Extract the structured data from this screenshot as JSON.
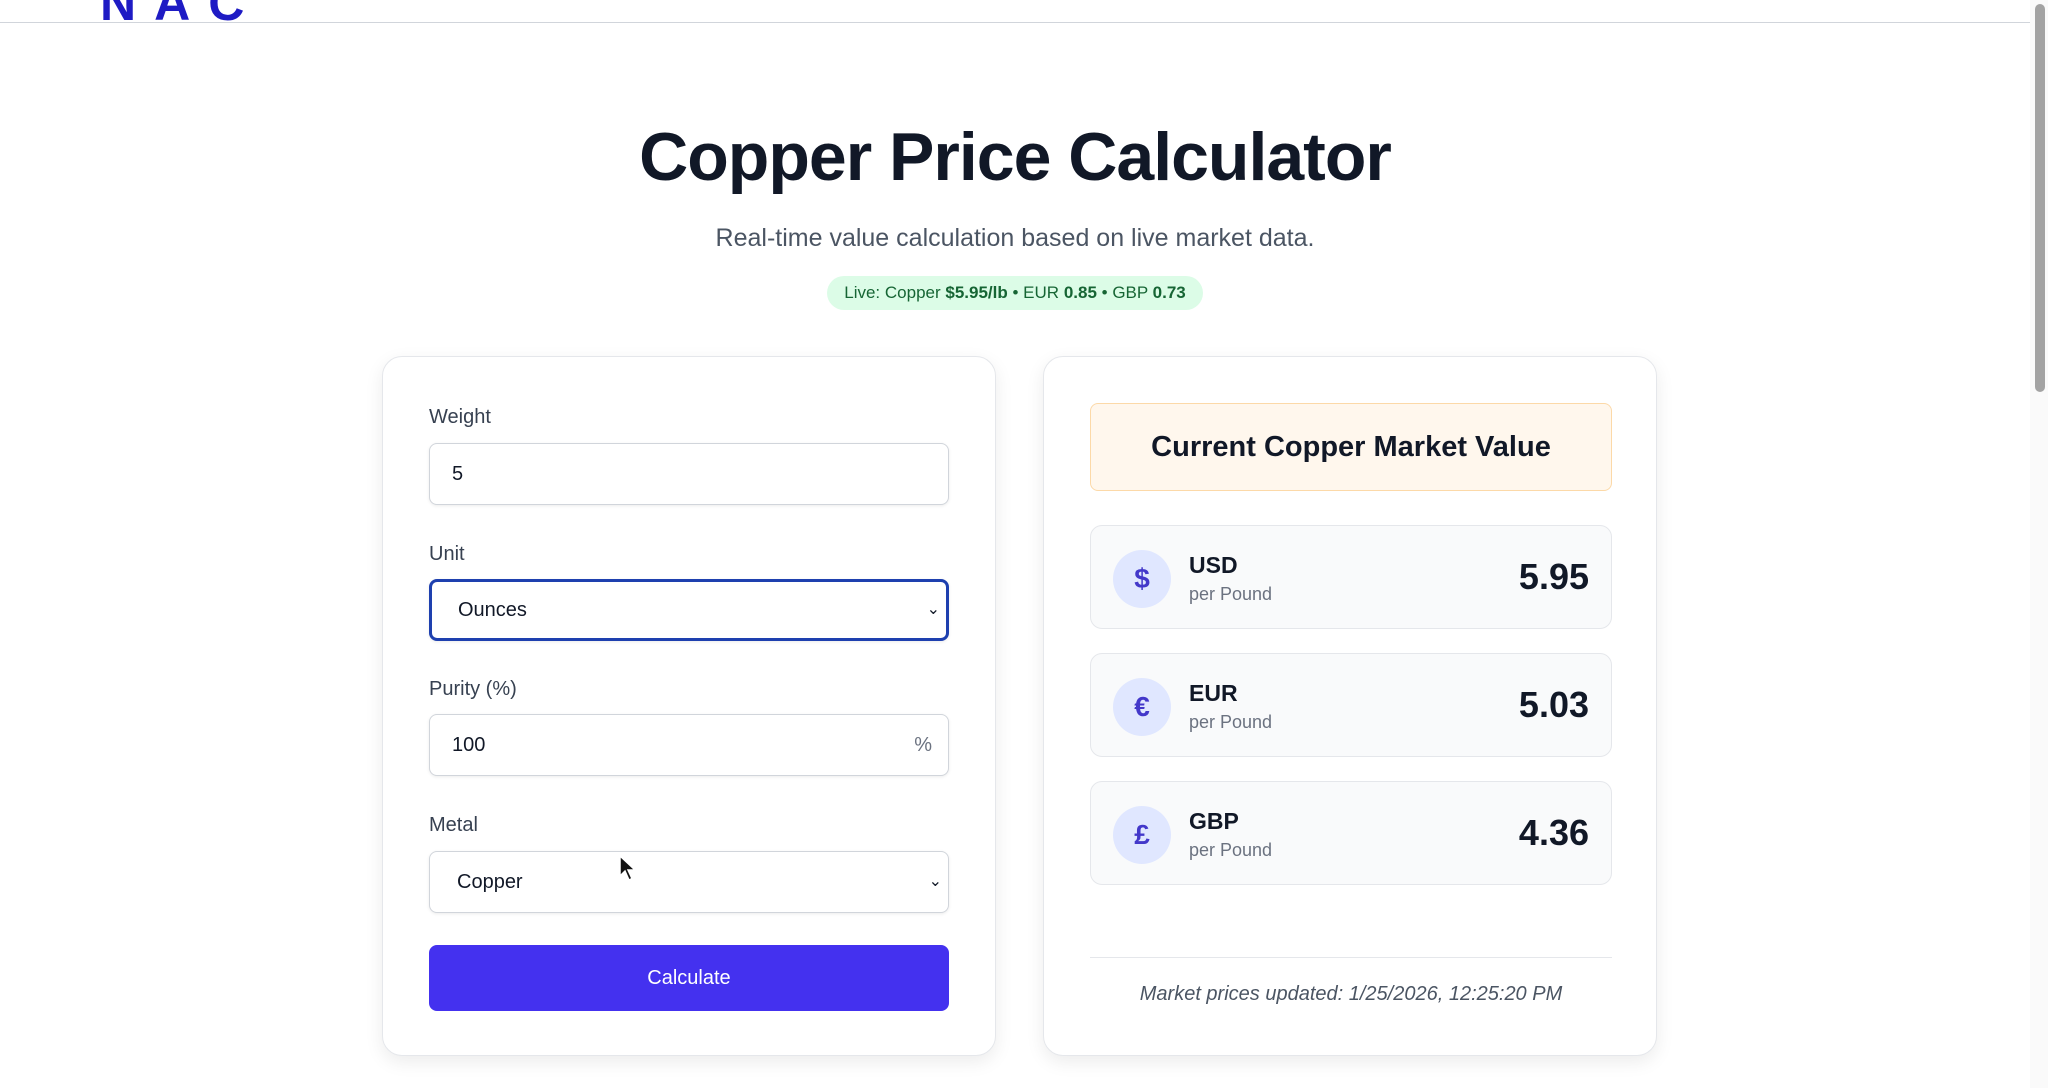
{
  "header": {
    "logo_text": "NAC"
  },
  "page": {
    "title": "Copper Price Calculator",
    "subtitle": "Real-time value calculation based on live market data."
  },
  "live_badge": {
    "prefix": "Live: Copper",
    "copper_price": "$5.95/lb",
    "sep1": "•",
    "eur_label": "EUR",
    "eur_rate": "0.85",
    "sep2": "•",
    "gbp_label": "GBP",
    "gbp_rate": "0.73",
    "bg_color": "#dcfce7",
    "text_color": "#166534"
  },
  "form": {
    "weight": {
      "label": "Weight",
      "value": "5"
    },
    "unit": {
      "label": "Unit",
      "selected": "Ounces"
    },
    "purity": {
      "label": "Purity (%)",
      "value": "100",
      "suffix": "%"
    },
    "metal": {
      "label": "Metal",
      "selected": "Copper"
    },
    "calculate_label": "Calculate",
    "accent_color": "#4431ef"
  },
  "market": {
    "title": "Current Copper Market Value",
    "prices": [
      {
        "icon": "dollar-icon",
        "symbol": "$",
        "code": "USD",
        "unit": "per Pound",
        "value": "5.95"
      },
      {
        "icon": "euro-icon",
        "symbol": "€",
        "code": "EUR",
        "unit": "per Pound",
        "value": "5.03"
      },
      {
        "icon": "pound-icon",
        "symbol": "£",
        "code": "GBP",
        "unit": "per Pound",
        "value": "4.36"
      }
    ],
    "updated": "Market prices updated: 1/25/2026, 12:25:20 PM"
  }
}
